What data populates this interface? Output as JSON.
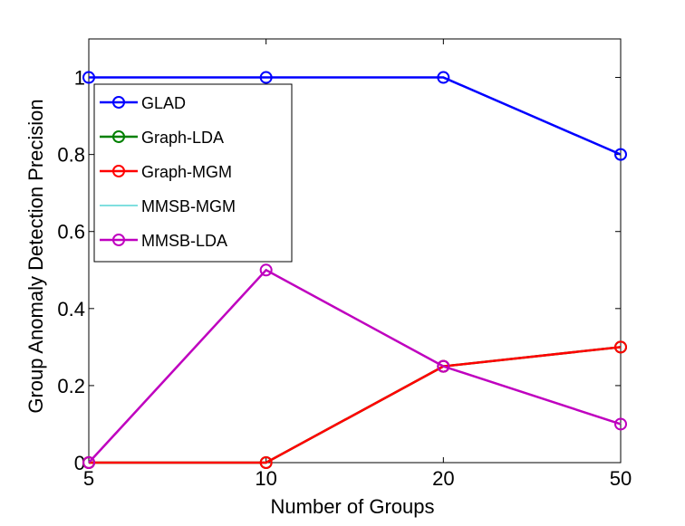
{
  "chart_data": {
    "type": "line",
    "title": "",
    "xlabel": "Number of Groups",
    "ylabel": "Group Anomaly Detection Precision",
    "categories": [
      "5",
      "10",
      "20",
      "50"
    ],
    "ylim": [
      0,
      1.1
    ],
    "yticks": [
      0,
      0.2,
      0.4,
      0.6,
      0.8,
      1
    ],
    "yticklabels": [
      "0",
      "0.2",
      "0.4",
      "0.6",
      "0.8",
      "1"
    ],
    "grid": false,
    "legend_position": "top-left",
    "series": [
      {
        "name": "GLAD",
        "values": [
          1,
          1,
          1,
          0.8
        ],
        "color": "#0000ff",
        "marker": "circle"
      },
      {
        "name": "Graph-LDA",
        "values": [
          0,
          0,
          0.25,
          0.3
        ],
        "color": "#008000",
        "marker": "circle"
      },
      {
        "name": "Graph-MGM",
        "values": [
          0,
          0,
          0.25,
          0.3
        ],
        "color": "#ff0000",
        "marker": "circle"
      },
      {
        "name": "MMSB-MGM",
        "values": [
          0,
          0.5,
          0.25,
          0.1
        ],
        "color": "#00bfbf",
        "marker": "none"
      },
      {
        "name": "MMSB-LDA",
        "values": [
          0,
          0.5,
          0.25,
          0.1
        ],
        "color": "#bf00bf",
        "marker": "circle"
      }
    ],
    "legend_labels": [
      "GLAD",
      "Graph-LDA",
      "Graph-MGM",
      "MMSB-MGM",
      "MMSB-LDA"
    ]
  }
}
